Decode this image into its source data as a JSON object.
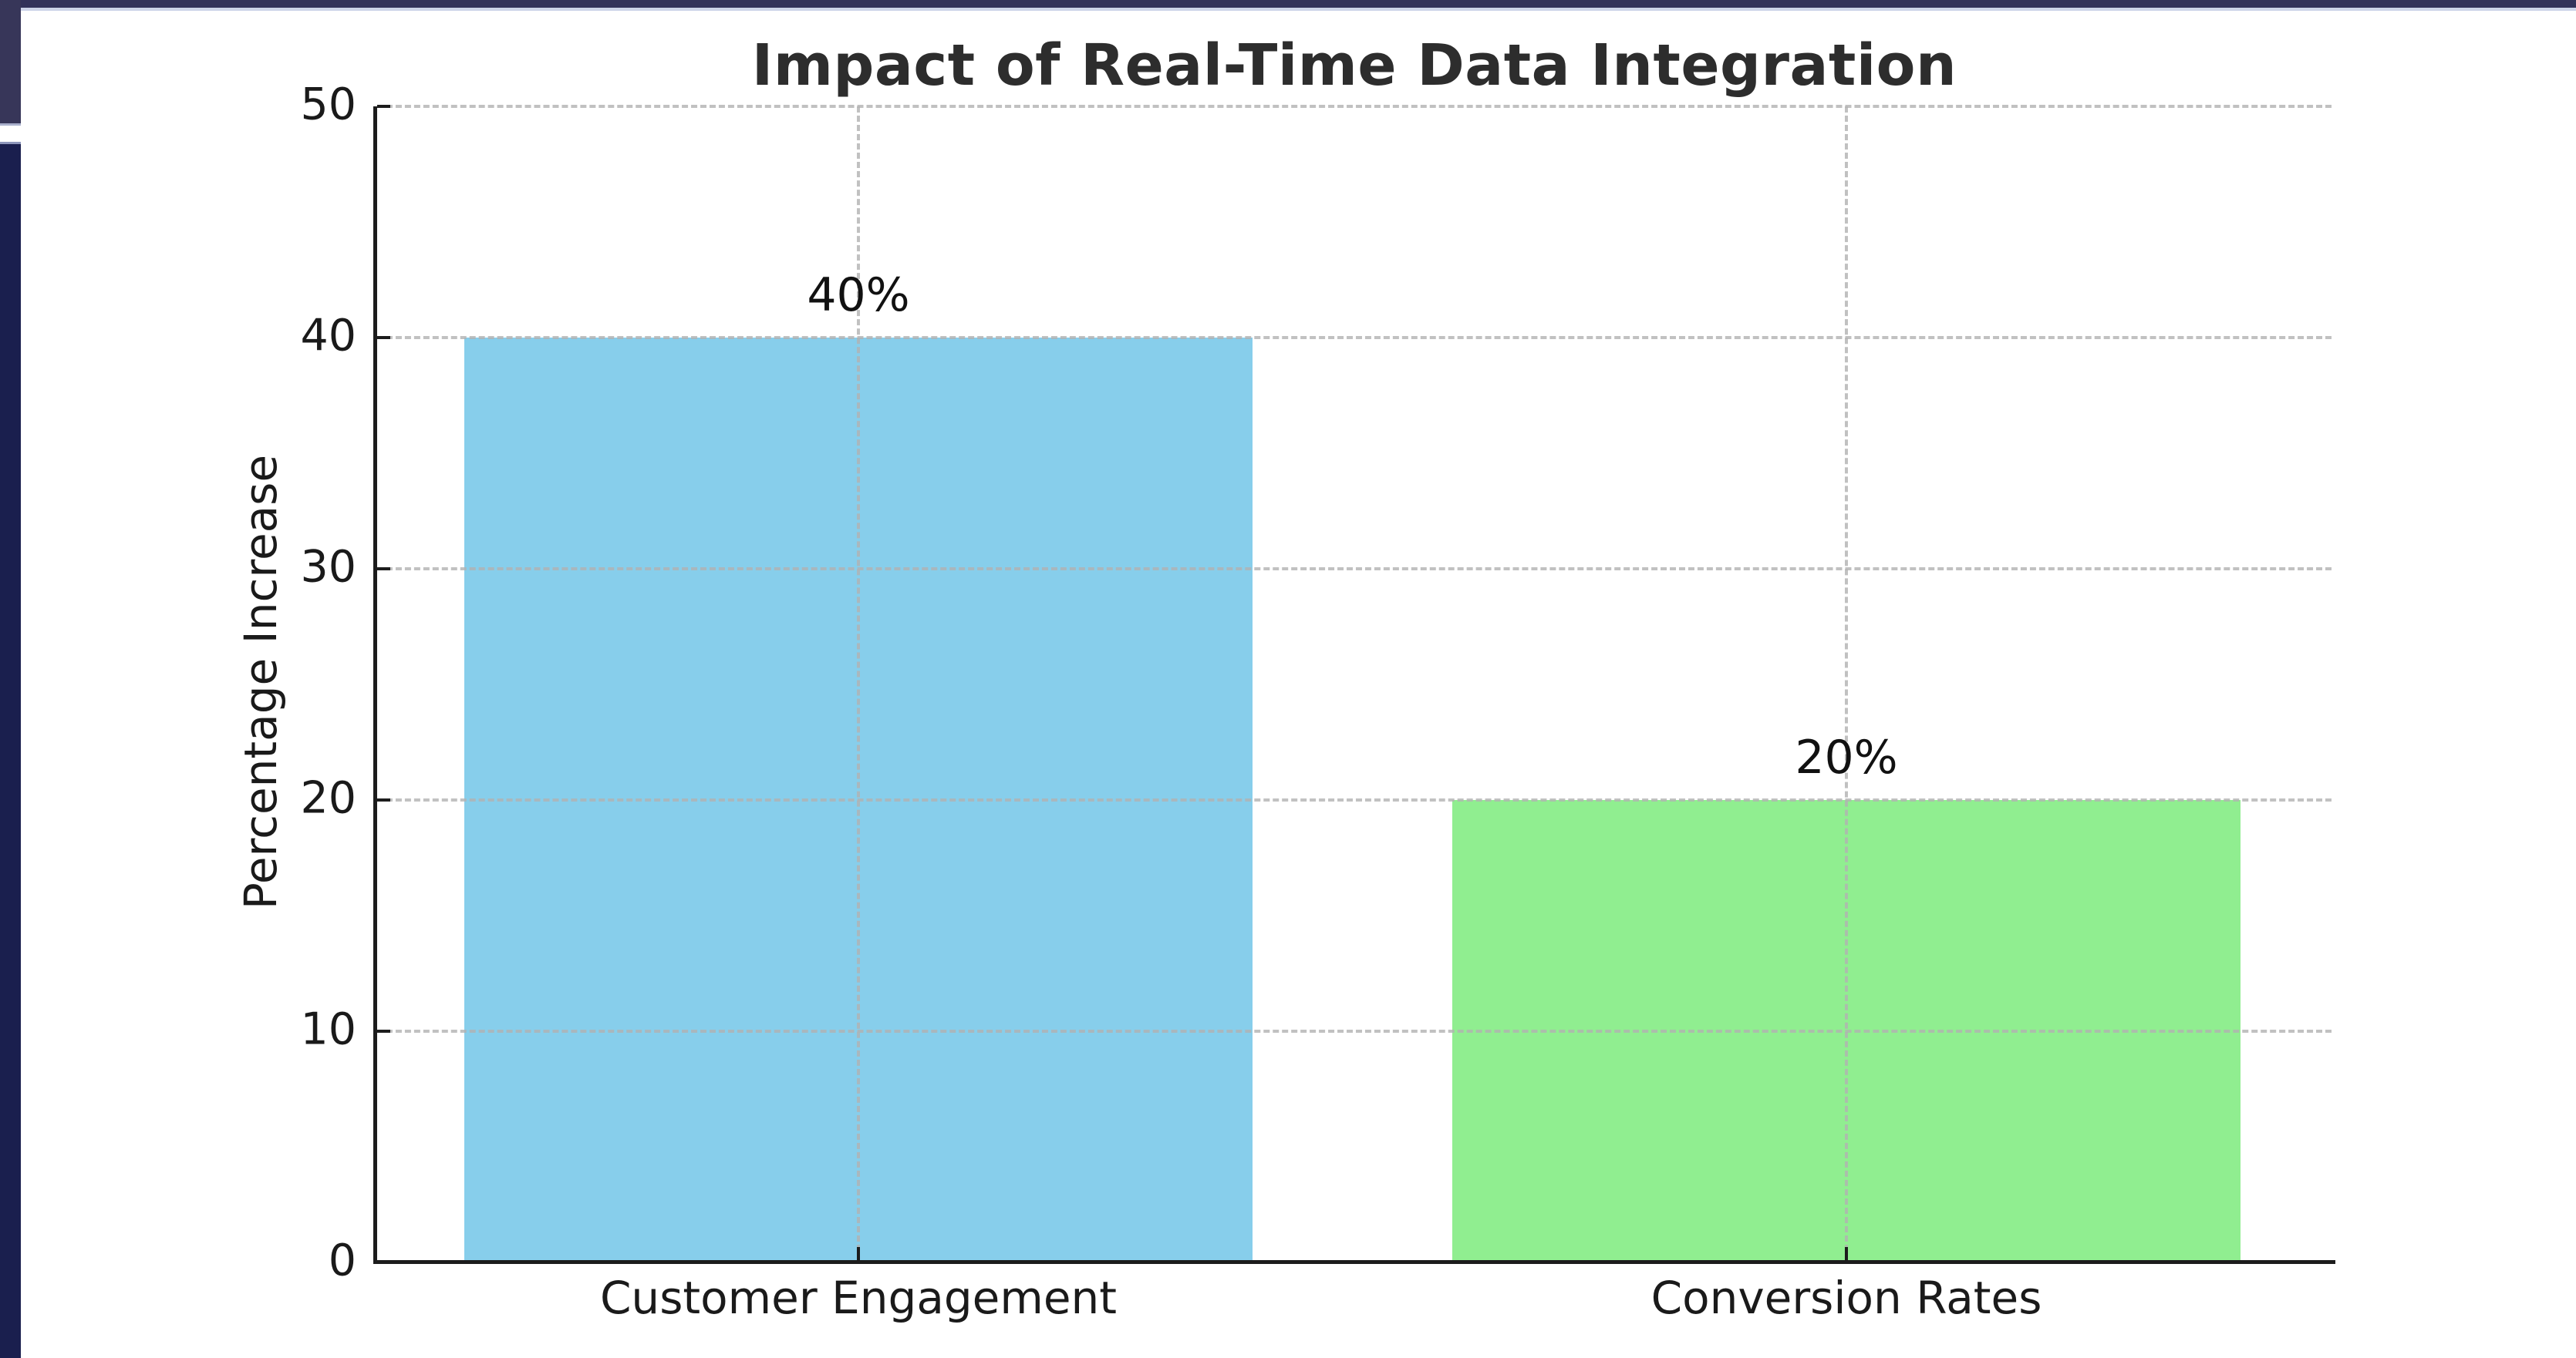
{
  "window": {
    "top_bar_color": "#32325a",
    "left_block_color": "#373659",
    "left_strip_color": "#1a1f4e",
    "background": "#ffffff"
  },
  "chart_data": {
    "type": "bar",
    "title": "Impact of Real-Time Data Integration",
    "xlabel": "",
    "ylabel": "Percentage Increase",
    "categories": [
      "Customer Engagement",
      "Conversion Rates"
    ],
    "values": [
      40,
      20
    ],
    "value_labels": [
      "40%",
      "20%"
    ],
    "bar_colors": [
      "#87CEEB",
      "#90EE90"
    ],
    "ylim": [
      0,
      50
    ],
    "yticks": [
      0,
      10,
      20,
      30,
      40,
      50
    ],
    "grid": "dashed light-gray gridlines on both axes, drawn over bars",
    "legend": "none"
  }
}
